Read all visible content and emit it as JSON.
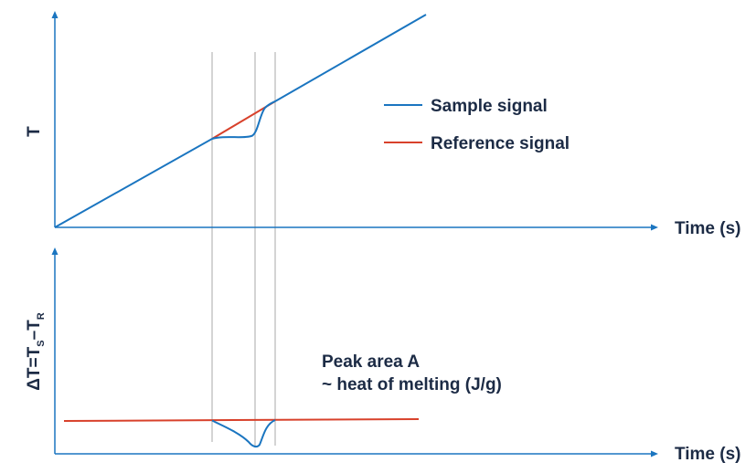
{
  "colors": {
    "axis": "#1a75c0",
    "sample": "#1a75c0",
    "reference": "#d8412b",
    "guide": "#b8b8b8",
    "text": "#1c2b45"
  },
  "top_panel": {
    "y_label": "T",
    "x_label": "Time (s)",
    "legend": {
      "sample": "Sample signal",
      "reference": "Reference signal"
    }
  },
  "bottom_panel": {
    "y_label": {
      "main": "ΔT=T",
      "sub_s": "S",
      "minus": "–T",
      "sub_r": "R"
    },
    "x_label": "Time (s)",
    "annotation": {
      "line1": "Peak area A",
      "line2": "~ heat of melting (J/g)"
    }
  }
}
